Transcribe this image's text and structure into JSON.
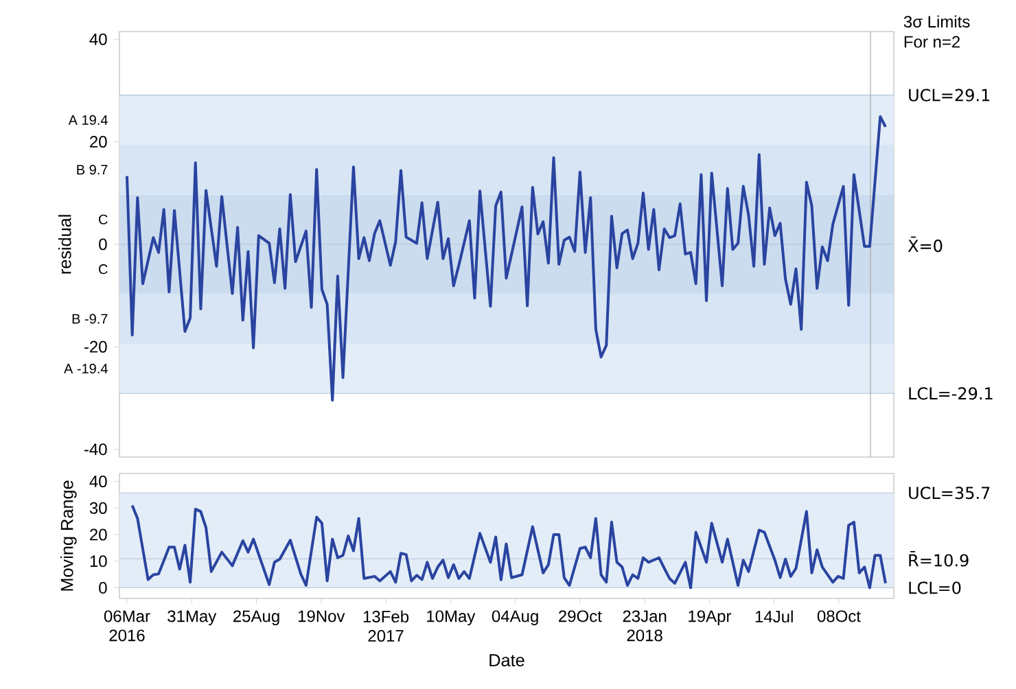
{
  "chart_data": [
    {
      "type": "line",
      "ylabel": "residual",
      "annotations": [
        "3σ Limits",
        "For n=2"
      ],
      "xlim": [
        "2016-02-25",
        "2018-12-20"
      ],
      "ylim": [
        -41.5,
        41.5
      ],
      "yticks": [
        -40,
        -20,
        0,
        20,
        40
      ],
      "tick_labels": "y",
      "bands": [
        {
          "axis": "y",
          "from": -29.1,
          "to": -19.4,
          "label": "A  -19.4",
          "color": "#e3edf8"
        },
        {
          "axis": "y",
          "from": -19.4,
          "to": -9.7,
          "label": "B  -9.7",
          "color": "#d7e5f4"
        },
        {
          "axis": "y",
          "from": -9.7,
          "to": 0,
          "label": "C",
          "color": "#ccdcef"
        },
        {
          "axis": "y",
          "from": 0,
          "to": 9.7,
          "label": "C",
          "color": "#ccdcef"
        },
        {
          "axis": "y",
          "from": 9.7,
          "to": 19.4,
          "label": "B  9.7",
          "color": "#d7e5f4"
        },
        {
          "axis": "y",
          "from": 19.4,
          "to": 29.1,
          "label": "A  19.4",
          "color": "#e3edf8"
        }
      ],
      "ref_lines": [
        {
          "axis": "y",
          "value": 29.1,
          "label": "UCL=29.1",
          "color": "#b4c4d6"
        },
        {
          "axis": "y",
          "value": 0,
          "label": "X̄=0",
          "color": "#b4c4d6"
        },
        {
          "axis": "y",
          "value": -29.1,
          "label": "LCL=-29.1",
          "color": "#b4c4d6"
        },
        {
          "axis": "x",
          "value": "2018-11-19",
          "color": "#a0a0a0"
        }
      ],
      "x": [
        "2016-03-06",
        "2016-03-13",
        "2016-03-20",
        "2016-03-27",
        "2016-04-10",
        "2016-04-17",
        "2016-04-24",
        "2016-05-01",
        "2016-05-08",
        "2016-05-22",
        "2016-05-29",
        "2016-06-05",
        "2016-06-12",
        "2016-06-19",
        "2016-07-03",
        "2016-07-10",
        "2016-07-24",
        "2016-07-31",
        "2016-08-07",
        "2016-08-14",
        "2016-08-21",
        "2016-08-28",
        "2016-09-11",
        "2016-09-18",
        "2016-09-25",
        "2016-10-02",
        "2016-10-09",
        "2016-10-16",
        "2016-10-30",
        "2016-11-06",
        "2016-11-13",
        "2016-11-20",
        "2016-11-27",
        "2016-12-04",
        "2016-12-11",
        "2016-12-18",
        "2017-01-01",
        "2017-01-08",
        "2017-01-15",
        "2017-01-22",
        "2017-01-29",
        "2017-02-05",
        "2017-02-19",
        "2017-02-26",
        "2017-03-05",
        "2017-03-12",
        "2017-03-26",
        "2017-04-02",
        "2017-04-09",
        "2017-04-23",
        "2017-04-30",
        "2017-05-07",
        "2017-05-14",
        "2017-05-21",
        "2017-06-04",
        "2017-06-11",
        "2017-06-18",
        "2017-07-02",
        "2017-07-09",
        "2017-07-16",
        "2017-07-23",
        "2017-08-13",
        "2017-08-20",
        "2017-08-27",
        "2017-09-03",
        "2017-09-10",
        "2017-09-17",
        "2017-09-24",
        "2017-10-01",
        "2017-10-08",
        "2017-10-15",
        "2017-10-22",
        "2017-10-29",
        "2017-11-05",
        "2017-11-12",
        "2017-11-19",
        "2017-11-26",
        "2017-12-03",
        "2017-12-10",
        "2017-12-17",
        "2017-12-24",
        "2017-12-31",
        "2018-01-07",
        "2018-01-14",
        "2018-01-21",
        "2018-01-28",
        "2018-02-04",
        "2018-02-11",
        "2018-02-18",
        "2018-02-25",
        "2018-03-04",
        "2018-03-11",
        "2018-03-18",
        "2018-03-25",
        "2018-04-01",
        "2018-04-08",
        "2018-04-15",
        "2018-04-22",
        "2018-05-06",
        "2018-05-13",
        "2018-05-20",
        "2018-05-27",
        "2018-06-03",
        "2018-06-10",
        "2018-06-17",
        "2018-06-24",
        "2018-07-01",
        "2018-07-08",
        "2018-07-15",
        "2018-07-22",
        "2018-07-29",
        "2018-08-05",
        "2018-08-12",
        "2018-08-19",
        "2018-08-26",
        "2018-09-02",
        "2018-09-09",
        "2018-09-16",
        "2018-09-23",
        "2018-09-30",
        "2018-10-14",
        "2018-10-21",
        "2018-10-28",
        "2018-11-11",
        "2018-11-18",
        "2018-12-02",
        "2018-12-09"
      ],
      "series": [
        {
          "color": "#2a44a0",
          "values": [
            13.3,
            -17.7,
            9.1,
            -7.7,
            1.3,
            -1.6,
            6.8,
            -9.3,
            6.6,
            -17.0,
            -14.4,
            15.9,
            -12.6,
            10.5,
            -4.3,
            9.3,
            -9.6,
            3.3,
            -14.8,
            -1.4,
            -20.2,
            1.7,
            0.2,
            -7.5,
            3.0,
            -8.6,
            9.7,
            -3.4,
            2.6,
            -12.3,
            14.6,
            -8.8,
            -11.7,
            -30.4,
            -6.2,
            -26.0,
            15.1,
            -2.8,
            1.3,
            -3.2,
            2.1,
            4.6,
            -4.1,
            0.5,
            14.4,
            1.4,
            0.2,
            8.1,
            -2.8,
            8.2,
            -2.8,
            1.1,
            -8.1,
            -4.1,
            4.6,
            -10.5,
            10.4,
            -12.1,
            7.5,
            10.2,
            -6.6,
            7.3,
            -12.0,
            11.1,
            2.0,
            4.4,
            -3.7,
            16.9,
            -3.9,
            0.8,
            1.4,
            -1.4,
            14.1,
            -1.6,
            9.1,
            -16.6,
            -22.0,
            -19.7,
            5.5,
            -4.6,
            2.1,
            2.8,
            -2.8,
            0.2,
            10.0,
            -1.0,
            6.8,
            -5.0,
            3.0,
            1.3,
            1.7,
            7.9,
            -1.9,
            -1.6,
            -7.7,
            13.6,
            -11.0,
            13.9,
            -8.1,
            10.9,
            -1.0,
            0.2,
            11.3,
            5.7,
            -4.3,
            17.5,
            -3.9,
            7.1,
            1.7,
            4.1,
            -6.8,
            -11.7,
            -4.8,
            -16.6,
            12.1,
            7.5,
            -8.6,
            -0.5,
            -3.2,
            3.9,
            11.3,
            -11.9,
            13.6,
            -0.4,
            -0.4,
            24.9,
            22.9
          ]
        }
      ]
    },
    {
      "type": "line",
      "ylabel": "Moving Range",
      "xlabel": "Date",
      "xlim": [
        "2016-02-25",
        "2018-12-20"
      ],
      "ylim": [
        -4,
        43
      ],
      "yticks": [
        0,
        10,
        20,
        30,
        40
      ],
      "xticks": [
        {
          "value": "2016-03-06",
          "label": "06Mar 2016"
        },
        {
          "value": "2016-05-31",
          "label": "31May"
        },
        {
          "value": "2016-08-25",
          "label": "25Aug"
        },
        {
          "value": "2016-11-19",
          "label": "19Nov"
        },
        {
          "value": "2017-02-13",
          "label": "13Feb 2017"
        },
        {
          "value": "2017-05-10",
          "label": "10May"
        },
        {
          "value": "2017-08-04",
          "label": "04Aug"
        },
        {
          "value": "2017-10-29",
          "label": "29Oct"
        },
        {
          "value": "2018-01-23",
          "label": "23Jan 2018"
        },
        {
          "value": "2018-04-19",
          "label": "19Apr"
        },
        {
          "value": "2018-07-14",
          "label": "14Jul"
        },
        {
          "value": "2018-10-08",
          "label": "08Oct"
        }
      ],
      "bands": [
        {
          "axis": "y",
          "from": 0,
          "to": 35.7,
          "color": "#e3edf8"
        }
      ],
      "ref_lines": [
        {
          "axis": "y",
          "value": 35.7,
          "label": "UCL=35.7",
          "color": "#b4c4d6"
        },
        {
          "axis": "y",
          "value": 10.9,
          "label": "R̄=10.9",
          "color": "#b4c4d6"
        },
        {
          "axis": "y",
          "value": 0,
          "label": "LCL=0",
          "color": "#b4c4d6"
        }
      ],
      "x": [
        "2016-03-13",
        "2016-03-20",
        "2016-04-03",
        "2016-04-10",
        "2016-04-17",
        "2016-05-01",
        "2016-05-08",
        "2016-05-15",
        "2016-05-22",
        "2016-05-29",
        "2016-06-05",
        "2016-06-12",
        "2016-06-19",
        "2016-06-26",
        "2016-07-10",
        "2016-07-24",
        "2016-08-07",
        "2016-08-14",
        "2016-08-21",
        "2016-09-11",
        "2016-09-18",
        "2016-09-25",
        "2016-10-09",
        "2016-10-23",
        "2016-10-30",
        "2016-11-13",
        "2016-11-20",
        "2016-11-27",
        "2016-12-04",
        "2016-12-11",
        "2016-12-18",
        "2016-12-25",
        "2017-01-01",
        "2017-01-08",
        "2017-01-15",
        "2017-01-29",
        "2017-02-05",
        "2017-02-19",
        "2017-02-26",
        "2017-03-05",
        "2017-03-12",
        "2017-03-19",
        "2017-03-26",
        "2017-04-02",
        "2017-04-09",
        "2017-04-16",
        "2017-04-23",
        "2017-04-30",
        "2017-05-07",
        "2017-05-14",
        "2017-05-21",
        "2017-05-28",
        "2017-06-04",
        "2017-06-18",
        "2017-07-02",
        "2017-07-09",
        "2017-07-16",
        "2017-07-23",
        "2017-07-30",
        "2017-08-13",
        "2017-08-27",
        "2017-09-10",
        "2017-09-17",
        "2017-09-24",
        "2017-10-01",
        "2017-10-08",
        "2017-10-15",
        "2017-10-29",
        "2017-11-05",
        "2017-11-12",
        "2017-11-19",
        "2017-11-26",
        "2017-12-03",
        "2017-12-10",
        "2017-12-17",
        "2017-12-24",
        "2017-12-31",
        "2018-01-07",
        "2018-01-14",
        "2018-01-21",
        "2018-01-28",
        "2018-02-11",
        "2018-02-18",
        "2018-02-25",
        "2018-03-04",
        "2018-03-18",
        "2018-03-25",
        "2018-04-01",
        "2018-04-15",
        "2018-04-22",
        "2018-05-06",
        "2018-05-13",
        "2018-05-27",
        "2018-06-03",
        "2018-06-10",
        "2018-06-24",
        "2018-07-01",
        "2018-07-15",
        "2018-07-22",
        "2018-07-29",
        "2018-08-05",
        "2018-08-12",
        "2018-08-26",
        "2018-09-02",
        "2018-09-09",
        "2018-09-16",
        "2018-09-30",
        "2018-10-07",
        "2018-10-14",
        "2018-10-21",
        "2018-10-28",
        "2018-11-04",
        "2018-11-11",
        "2018-11-18",
        "2018-11-25",
        "2018-12-02",
        "2018-12-09"
      ],
      "series": [
        {
          "color": "#2a44a0",
          "values": [
            31.0,
            26.1,
            3.1,
            4.9,
            5.2,
            15.3,
            15.3,
            7.0,
            16.0,
            2.1,
            29.6,
            28.7,
            22.6,
            6.1,
            13.4,
            8.3,
            17.7,
            13.4,
            18.3,
            1.2,
            9.6,
            10.8,
            17.9,
            5.2,
            0.9,
            26.6,
            24.3,
            2.6,
            18.3,
            11.3,
            12.2,
            19.5,
            13.9,
            26.1,
            3.5,
            4.3,
            2.6,
            6.1,
            2.1,
            13.0,
            12.5,
            2.6,
            4.7,
            3.1,
            9.6,
            3.5,
            7.8,
            10.4,
            3.8,
            8.7,
            3.5,
            6.1,
            3.5,
            20.5,
            9.6,
            19.1,
            3.0,
            16.5,
            3.8,
            4.9,
            23.0,
            5.6,
            8.7,
            20.0,
            20.0,
            3.8,
            0.9,
            14.8,
            15.3,
            11.3,
            26.1,
            4.9,
            2.1,
            24.7,
            9.6,
            7.8,
            0.9,
            4.9,
            3.5,
            11.3,
            9.6,
            11.3,
            7.3,
            3.5,
            1.7,
            9.6,
            0,
            20.9,
            9.6,
            24.3,
            9.6,
            18.3,
            0.9,
            10.4,
            6.1,
            21.7,
            20.9,
            10.4,
            3.8,
            10.8,
            4.3,
            7.3,
            28.7,
            5.6,
            14.3,
            7.8,
            2.1,
            4.3,
            3.5,
            23.5,
            24.7,
            5.6,
            7.8,
            0,
            12.2,
            12.2,
            1.7
          ]
        }
      ]
    }
  ]
}
